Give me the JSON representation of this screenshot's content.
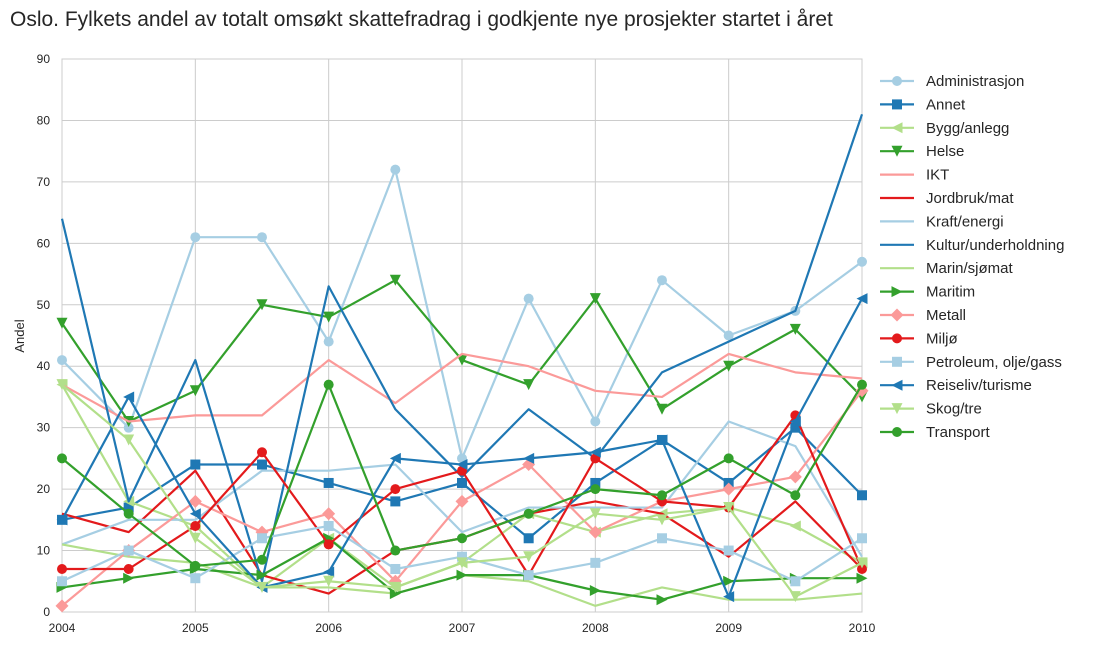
{
  "chart_data": {
    "type": "line",
    "title": "Oslo. Fylkets andel av totalt omsøkt skattefradrag i godkjente nye prosjekter startet i året",
    "xlabel": "",
    "ylabel": "Andel",
    "xlim": [
      2004,
      2010
    ],
    "ylim": [
      0,
      90
    ],
    "x": [
      2004,
      2004.5,
      2005,
      2005.5,
      2006,
      2006.5,
      2007,
      2007.5,
      2008,
      2008.5,
      2009,
      2009.5,
      2010
    ],
    "x_ticks": [
      "2004",
      "2005",
      "2006",
      "2007",
      "2008",
      "2009",
      "2010"
    ],
    "y_ticks": [
      "0",
      "10",
      "20",
      "30",
      "40",
      "50",
      "60",
      "70",
      "80",
      "90"
    ],
    "grid": true,
    "legend_position": "right",
    "series": [
      {
        "name": "Administrasjon",
        "color": "#a6cee3",
        "marker": "circle",
        "values": [
          41,
          30,
          61,
          61,
          44,
          72,
          25,
          51,
          31,
          54,
          45,
          49,
          57
        ]
      },
      {
        "name": "Annet",
        "color": "#1f78b4",
        "marker": "square",
        "values": [
          15,
          17,
          24,
          24,
          21,
          18,
          21,
          12,
          21,
          28,
          21,
          30,
          19
        ]
      },
      {
        "name": "Bygg/anlegg",
        "color": "#b2df8a",
        "marker": "triangle-left",
        "values": [
          37,
          18,
          14,
          4,
          12,
          4,
          8,
          16,
          13,
          16,
          17,
          14,
          8
        ]
      },
      {
        "name": "Helse",
        "color": "#33a02c",
        "marker": "triangle-down",
        "values": [
          47,
          31,
          36,
          50,
          48,
          54,
          41,
          37,
          51,
          33,
          40,
          46,
          35
        ]
      },
      {
        "name": "IKT",
        "color": "#fb9a99",
        "marker": "none",
        "values": [
          37,
          31,
          32,
          32,
          41,
          34,
          42,
          40,
          36,
          35,
          42,
          39,
          38
        ]
      },
      {
        "name": "Jordbruk/mat",
        "color": "#e31a1c",
        "marker": "none",
        "values": [
          16,
          13,
          23,
          6,
          3,
          10,
          12,
          16,
          18,
          16,
          9,
          18,
          7
        ]
      },
      {
        "name": "Kraft/energi",
        "color": "#a6cee3",
        "marker": "none",
        "values": [
          11,
          15,
          15,
          23,
          23,
          24,
          13,
          17,
          17,
          17,
          31,
          27,
          9
        ]
      },
      {
        "name": "Kultur/underholdning",
        "color": "#1f78b4",
        "marker": "none",
        "values": [
          64,
          18,
          41,
          5,
          53,
          33,
          22,
          33,
          25,
          39,
          44,
          49,
          81
        ]
      },
      {
        "name": "Marin/sjømat",
        "color": "#b2df8a",
        "marker": "none",
        "values": [
          11,
          9,
          8,
          4,
          4,
          3,
          6,
          5,
          1,
          4,
          2,
          2,
          3
        ]
      },
      {
        "name": "Maritim",
        "color": "#33a02c",
        "marker": "triangle-right",
        "values": [
          4,
          5.5,
          7,
          6,
          12,
          3,
          6,
          6,
          3.5,
          2,
          5,
          5.5,
          5.5
        ]
      },
      {
        "name": "Metall",
        "color": "#fb9a99",
        "marker": "diamond",
        "values": [
          1,
          10,
          18,
          13,
          16,
          5,
          18,
          24,
          13,
          18,
          20,
          22,
          36
        ]
      },
      {
        "name": "Miljø",
        "color": "#e31a1c",
        "marker": "circle",
        "values": [
          7,
          7,
          14,
          26,
          11,
          20,
          23,
          6,
          25,
          18,
          17,
          32,
          7
        ]
      },
      {
        "name": "Petroleum, olje/gass",
        "color": "#a6cee3",
        "marker": "square",
        "values": [
          5,
          10,
          5.5,
          12,
          14,
          7,
          9,
          6,
          8,
          12,
          10,
          5,
          12
        ]
      },
      {
        "name": "Reiseliv/turisme",
        "color": "#1f78b4",
        "marker": "triangle-left",
        "values": [
          15,
          35,
          16,
          4,
          6.5,
          25,
          24,
          25,
          26,
          28,
          2.5,
          31,
          51
        ]
      },
      {
        "name": "Skog/tre",
        "color": "#b2df8a",
        "marker": "triangle-down",
        "values": [
          37,
          28,
          12,
          4,
          5,
          4,
          8,
          9,
          16,
          15,
          17,
          2.5,
          8
        ]
      },
      {
        "name": "Transport",
        "color": "#33a02c",
        "marker": "circle",
        "values": [
          25,
          16,
          7.5,
          8.5,
          37,
          10,
          12,
          16,
          20,
          19,
          25,
          19,
          37
        ]
      }
    ]
  }
}
